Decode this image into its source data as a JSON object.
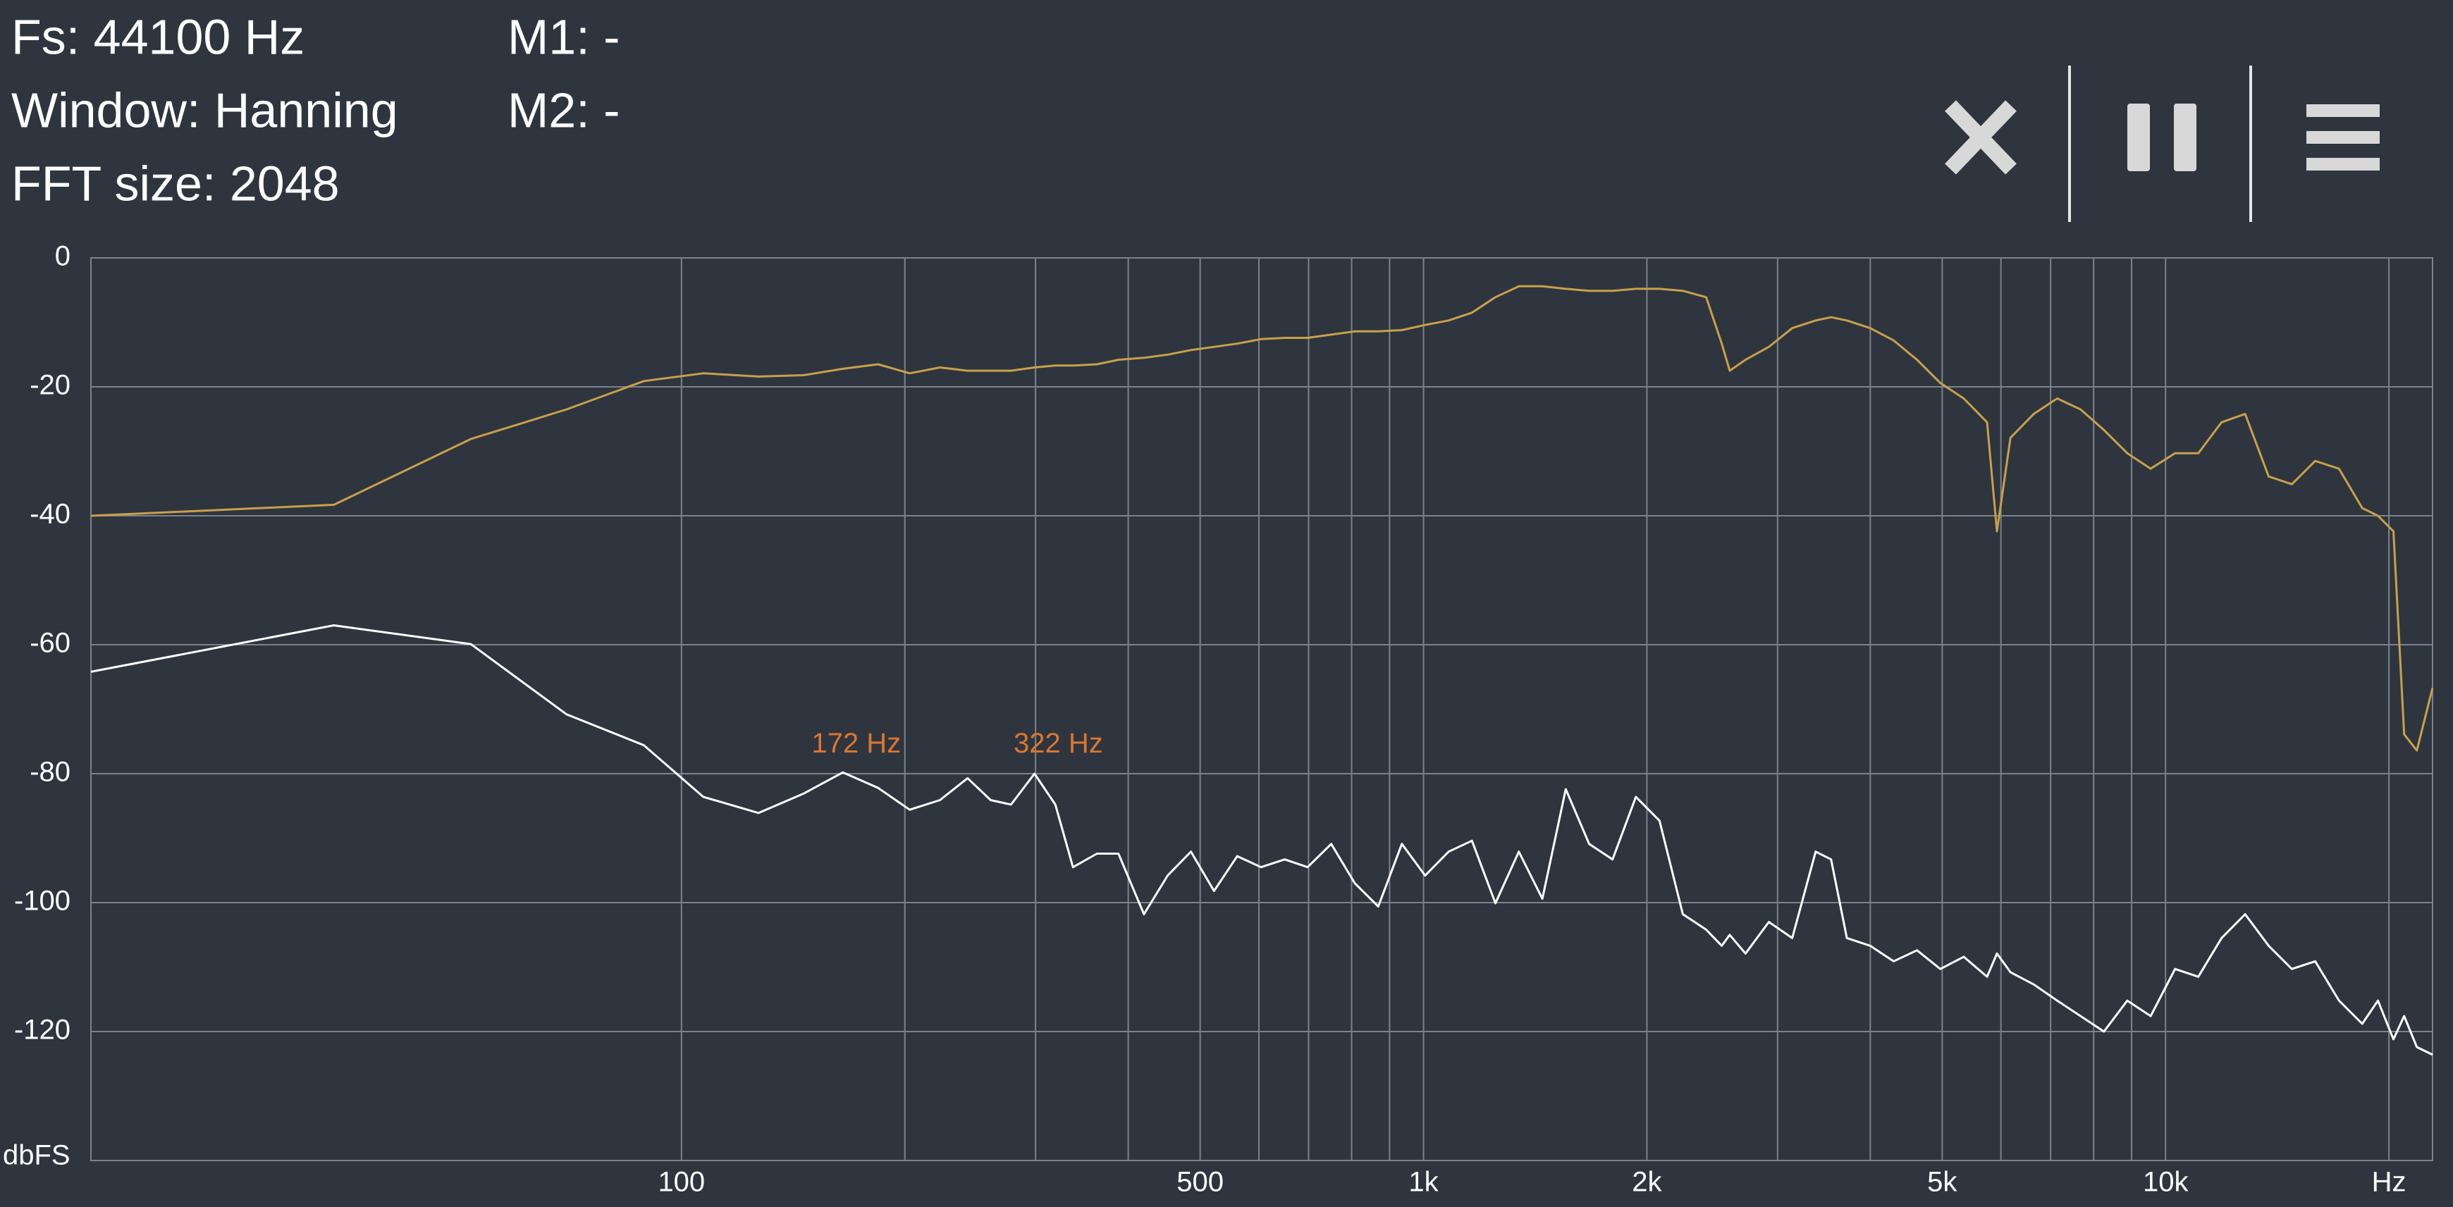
{
  "header": {
    "fs": "Fs: 44100 Hz",
    "window": "Window: Hanning",
    "fft": "FFT size: 2048",
    "m1": "M1: -",
    "m2": "M2: -"
  },
  "chart_data": {
    "type": "line",
    "x_scale": "log",
    "grid": true,
    "y_label": "dbFS",
    "xlim": [
      16,
      22900
    ],
    "ylim": [
      -140,
      0
    ],
    "yticks": [
      0,
      -20,
      -40,
      -60,
      -80,
      -100,
      -120
    ],
    "xticks": [
      100,
      500,
      {
        "value": 1000,
        "label": "1k"
      },
      {
        "value": 2000,
        "label": "2k"
      },
      {
        "value": 5000,
        "label": "5k"
      },
      {
        "value": 10000,
        "label": "10k"
      },
      {
        "value": 20000,
        "label": "Hz"
      }
    ],
    "xgrid": [
      200,
      300,
      400,
      600,
      700,
      800,
      900,
      3000,
      4000,
      6000,
      7000,
      8000,
      9000
    ],
    "x": [
      16,
      34,
      52,
      70,
      89,
      107,
      127,
      146,
      165,
      184,
      203,
      223,
      243,
      261,
      278,
      299,
      319,
      337,
      363,
      388,
      420,
      452,
      486,
      522,
      561,
      604,
      650,
      698,
      751,
      808,
      869,
      935,
      1005,
      1081,
      1162,
      1250,
      1344,
      1446,
      1555,
      1672,
      1798,
      1933,
      2080,
      2236,
      2404,
      2523,
      2586,
      2716,
      2920,
      3140,
      3376,
      3542,
      3720,
      4000,
      4300,
      4624,
      4972,
      5346,
      5748,
      5926,
      6180,
      6645,
      7145,
      7682,
      8260,
      8881,
      9549,
      10300,
      11070,
      11900,
      12800,
      13770,
      14800,
      15910,
      17130,
      18410,
      19330,
      20280,
      20970,
      21810,
      22900
    ],
    "series": [
      {
        "color": "#c9a04b",
        "values": [
          -40,
          -38.3,
          -28.1,
          -23.5,
          -19.1,
          -17.9,
          -18.4,
          -18.2,
          -17.2,
          -16.5,
          -17.9,
          -17,
          -17.5,
          -17.5,
          -17.5,
          -17,
          -16.7,
          -16.7,
          -16.5,
          -15.8,
          -15.5,
          -15,
          -14.3,
          -13.8,
          -13.3,
          -12.6,
          -12.4,
          -12.4,
          -11.9,
          -11.4,
          -11.4,
          -11.2,
          -10.4,
          -9.7,
          -8.5,
          -6.1,
          -4.4,
          -4.4,
          -4.8,
          -5.1,
          -5.1,
          -4.8,
          -4.8,
          -5.1,
          -6.1,
          -13.3,
          -17.5,
          -15.8,
          -13.8,
          -10.9,
          -9.7,
          -9.2,
          -9.7,
          -10.9,
          -12.8,
          -15.8,
          -19.4,
          -21.8,
          -25.5,
          -42.4,
          -27.9,
          -24.2,
          -21.8,
          -23.5,
          -26.7,
          -30.3,
          -32.7,
          -30.3,
          -30.3,
          -25.5,
          -24.2,
          -33.9,
          -35.1,
          -31.5,
          -32.7,
          -38.8,
          -40,
          -42.4,
          -73.9,
          -76.4,
          -66.7
        ]
      },
      {
        "color": "#ffffff",
        "values": [
          -64.2,
          -57,
          -59.9,
          -70.8,
          -75.6,
          -83.6,
          -86.1,
          -83.1,
          -79.8,
          -82.2,
          -85.6,
          -84.1,
          -80.7,
          -84.1,
          -84.8,
          -80,
          -84.8,
          -94.5,
          -92.4,
          -92.4,
          -101.8,
          -95.8,
          -92.1,
          -98.2,
          -92.8,
          -94.5,
          -93.3,
          -94.5,
          -90.9,
          -97,
          -100.6,
          -90.9,
          -95.8,
          -92.1,
          -90.4,
          -100.1,
          -92.1,
          -99.4,
          -82.4,
          -90.9,
          -93.3,
          -83.6,
          -87.3,
          -101.8,
          -104.2,
          -106.7,
          -105,
          -107.9,
          -103,
          -105.5,
          -92.1,
          -93.3,
          -105.5,
          -106.7,
          -109.1,
          -107.4,
          -110.3,
          -108.4,
          -111.5,
          -107.9,
          -110.8,
          -112.7,
          -115.2,
          -117.6,
          -120,
          -115.2,
          -117.6,
          -110.3,
          -111.5,
          -105.5,
          -101.8,
          -106.7,
          -110.3,
          -109.1,
          -115.2,
          -118.8,
          -115.2,
          -121.2,
          -117.6,
          -122.4,
          -123.6
        ]
      }
    ],
    "annotation_color": "#d9772f",
    "annotations": [
      {
        "text": "172 Hz",
        "x": 172,
        "y": -80
      },
      {
        "text": "322 Hz",
        "x": 322,
        "y": -80
      }
    ]
  }
}
